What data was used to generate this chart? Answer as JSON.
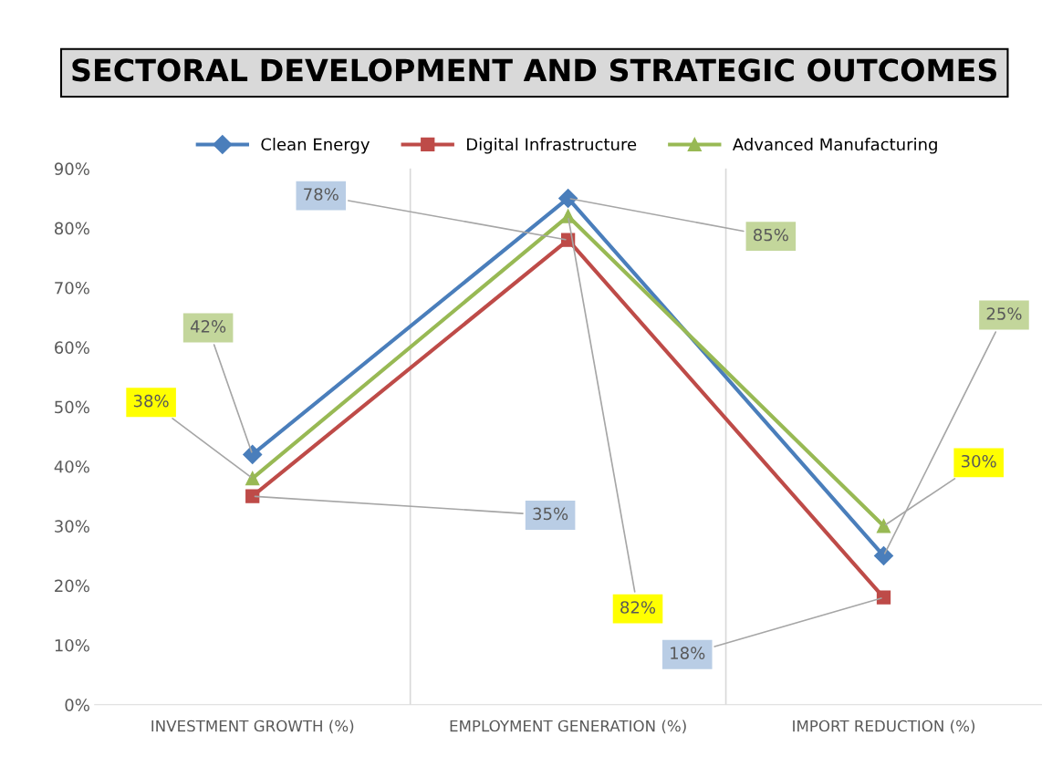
{
  "chart_data": {
    "type": "line",
    "title": "SECTORAL DEVELOPMENT AND STRATEGIC OUTCOMES",
    "categories": [
      "INVESTMENT GROWTH (%)",
      "EMPLOYMENT GENERATION (%)",
      "IMPORT REDUCTION (%)"
    ],
    "series": [
      {
        "name": "Clean Energy",
        "color": "#4a7ebb",
        "marker": "diamond",
        "values": [
          42,
          85,
          25
        ],
        "value_labels": [
          "42%",
          "85%",
          "25%"
        ]
      },
      {
        "name": "Digital Infrastructure",
        "color": "#be4b48",
        "marker": "square",
        "values": [
          35,
          78,
          18
        ],
        "value_labels": [
          "35%",
          "78%",
          "18%"
        ]
      },
      {
        "name": "Advanced Manufacturing",
        "color": "#98b954",
        "marker": "triangle",
        "values": [
          38,
          82,
          30
        ],
        "value_labels": [
          "38%",
          "82%",
          "30%"
        ]
      }
    ],
    "ylim": [
      0,
      90
    ],
    "yticks": [
      {
        "value": 0,
        "label": "0%"
      },
      {
        "value": 10,
        "label": "10%"
      },
      {
        "value": 20,
        "label": "20%"
      },
      {
        "value": 30,
        "label": "30%"
      },
      {
        "value": 40,
        "label": "40%"
      },
      {
        "value": 50,
        "label": "50%"
      },
      {
        "value": 60,
        "label": "60%"
      },
      {
        "value": 70,
        "label": "70%"
      },
      {
        "value": 80,
        "label": "80%"
      },
      {
        "value": 90,
        "label": "90%"
      }
    ],
    "grid": "x",
    "legend": "top",
    "line_style": "solid"
  }
}
